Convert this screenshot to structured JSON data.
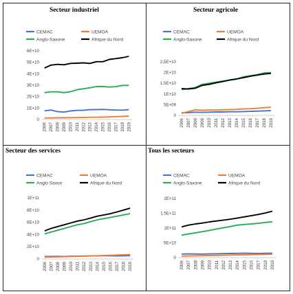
{
  "chart_data": [
    {
      "type": "line",
      "title": "Secteur industriel",
      "x": [
        "2006",
        "2007",
        "2008",
        "2009",
        "2010",
        "2011",
        "2012",
        "2013",
        "2014",
        "2015",
        "2016",
        "2017",
        "2018",
        "2019"
      ],
      "ylim": [
        0,
        60000000000
      ],
      "yticks": [
        "0",
        "1E+10",
        "2E+10",
        "3E+10",
        "4E+10",
        "5E+10",
        "6E+10"
      ],
      "ytick_values": [
        0,
        10000000000,
        20000000000,
        30000000000,
        40000000000,
        50000000000,
        60000000000
      ],
      "legend": "top",
      "grid": false,
      "series": [
        {
          "name": "CEMAC",
          "color": "#4472c4",
          "values": [
            7600000000,
            8300000000,
            6900000000,
            6500000000,
            7500000000,
            8000000000,
            8100000000,
            8600000000,
            8700000000,
            8800000000,
            8500000000,
            8300000000,
            8200000000,
            8600000000
          ]
        },
        {
          "name": "UEMOA",
          "color": "#ed7d31",
          "values": [
            1300000000,
            1400000000,
            1500000000,
            1500000000,
            1600000000,
            1700000000,
            1800000000,
            1900000000,
            2000000000,
            2100000000,
            2300000000,
            2500000000,
            2700000000,
            3000000000
          ]
        },
        {
          "name": "Anglo-Saxone",
          "color": "#22b14c",
          "values": [
            23500000000,
            24200000000,
            24200000000,
            23500000000,
            24300000000,
            26000000000,
            26900000000,
            27700000000,
            28800000000,
            28800000000,
            28400000000,
            28700000000,
            29800000000,
            29800000000
          ]
        },
        {
          "name": "Afrique du Nord",
          "color": "#000000",
          "values": [
            45000000000,
            47500000000,
            48200000000,
            47800000000,
            49000000000,
            49200000000,
            49500000000,
            49000000000,
            50500000000,
            50500000000,
            52500000000,
            53200000000,
            54000000000,
            55200000000
          ]
        }
      ]
    },
    {
      "type": "line",
      "title": "Secteur agricole",
      "x": [
        "2006",
        "2007",
        "2008",
        "2009",
        "2010",
        "2011",
        "2012",
        "2013",
        "2014",
        "2015",
        "2016",
        "2017",
        "2018",
        "2019"
      ],
      "ylim": [
        0,
        25000000000
      ],
      "yticks": [
        "0",
        "5E+09",
        "1E+10",
        "1,5E+10",
        "2E+10",
        "2,5E+10"
      ],
      "ytick_values": [
        0,
        5000000000,
        10000000000,
        15000000000,
        20000000000,
        25000000000
      ],
      "legend": "top",
      "grid": false,
      "series": [
        {
          "name": "CEMAC",
          "color": "#4472c4",
          "values": [
            1200000000,
            1300000000,
            1500000000,
            1400000000,
            1500000000,
            1600000000,
            1600000000,
            1700000000,
            1700000000,
            1800000000,
            1900000000,
            2000000000,
            2100000000,
            2200000000
          ]
        },
        {
          "name": "UEMOA",
          "color": "#ed7d31",
          "values": [
            1000000000,
            1800000000,
            2600000000,
            2400000000,
            2500000000,
            2500000000,
            2600000000,
            2700000000,
            2800000000,
            3000000000,
            3100000000,
            3300000000,
            3600000000,
            3800000000
          ]
        },
        {
          "name": "Anglo-Saxone",
          "color": "#22b14c",
          "values": [
            12000000000,
            12500000000,
            13000000000,
            14500000000,
            15000000000,
            15500000000,
            16000000000,
            16500000000,
            17000000000,
            18000000000,
            18500000000,
            19000000000,
            19800000000,
            20000000000
          ]
        },
        {
          "name": "Afrique du Nord",
          "color": "#000000",
          "values": [
            12500000000,
            12300000000,
            12700000000,
            14000000000,
            14500000000,
            15200000000,
            15800000000,
            16500000000,
            17000000000,
            17600000000,
            18300000000,
            18800000000,
            19300000000,
            19600000000
          ]
        }
      ]
    },
    {
      "type": "line",
      "title": "Secteur des services",
      "x": [
        "2006",
        "2007",
        "2008",
        "2009",
        "2010",
        "2011",
        "2012",
        "2013",
        "2014",
        "2015",
        "2016",
        "2017",
        "2018",
        "2019"
      ],
      "ylim": [
        0,
        100000000000
      ],
      "yticks": [
        "0",
        "2E+10",
        "4E+10",
        "6E+10",
        "8E+10",
        "1E+11"
      ],
      "ytick_values": [
        0,
        20000000000,
        40000000000,
        60000000000,
        80000000000,
        100000000000
      ],
      "legend": "top",
      "grid": false,
      "series": [
        {
          "name": "CEMAC",
          "color": "#4472c4",
          "values": [
            4000000000,
            4200000000,
            4300000000,
            4100000000,
            4400000000,
            4600000000,
            4800000000,
            5000000000,
            5200000000,
            5300000000,
            5200000000,
            5100000000,
            5200000000,
            5400000000
          ]
        },
        {
          "name": "UEMOA",
          "color": "#ed7d31",
          "values": [
            3000000000,
            3200000000,
            3500000000,
            3700000000,
            4000000000,
            4300000000,
            4600000000,
            5000000000,
            5300000000,
            5700000000,
            6000000000,
            6400000000,
            6800000000,
            7200000000
          ]
        },
        {
          "name": "Anglo Saxon",
          "color": "#22b14c",
          "values": [
            41000000000,
            44000000000,
            47000000000,
            50000000000,
            53000000000,
            56000000000,
            58000000000,
            61000000000,
            64000000000,
            66000000000,
            68000000000,
            70000000000,
            72000000000,
            74000000000
          ]
        },
        {
          "name": "Afrique du Nord",
          "color": "#000000",
          "values": [
            46000000000,
            50000000000,
            53000000000,
            56000000000,
            59000000000,
            62000000000,
            64000000000,
            67000000000,
            70000000000,
            72000000000,
            74000000000,
            77000000000,
            80000000000,
            83000000000
          ]
        }
      ]
    },
    {
      "type": "line",
      "title": "Tous les secteurs",
      "x": [
        "2006",
        "2007",
        "2008",
        "2009",
        "2010",
        "2011",
        "2012",
        "2013",
        "2014",
        "2015",
        "2016",
        "2017",
        "2018",
        "2019"
      ],
      "ylim": [
        0,
        200000000000
      ],
      "yticks": [
        "0",
        "5E+10",
        "1E+11",
        "1,5E+11",
        "2E+11"
      ],
      "ytick_values": [
        0,
        50000000000,
        100000000000,
        150000000000,
        200000000000
      ],
      "legend": "top",
      "grid": false,
      "series": [
        {
          "name": "CEMAC",
          "color": "#4472c4",
          "values": [
            12000000000,
            12500000000,
            12200000000,
            11800000000,
            12500000000,
            13000000000,
            13500000000,
            14000000000,
            14500000000,
            14800000000,
            14500000000,
            14300000000,
            14600000000,
            15000000000
          ]
        },
        {
          "name": "UEMOA",
          "color": "#ed7d31",
          "values": [
            5000000000,
            5500000000,
            6000000000,
            6500000000,
            7000000000,
            7500000000,
            8000000000,
            8500000000,
            9000000000,
            9500000000,
            10000000000,
            10500000000,
            11000000000,
            11500000000
          ]
        },
        {
          "name": "Anglo-Saxone",
          "color": "#22b14c",
          "values": [
            76000000000,
            80000000000,
            84000000000,
            88000000000,
            92000000000,
            97000000000,
            101000000000,
            105000000000,
            110000000000,
            112000000000,
            114000000000,
            116000000000,
            119000000000,
            121000000000
          ]
        },
        {
          "name": "Afrique du Nord",
          "color": "#000000",
          "values": [
            104000000000,
            110000000000,
            114000000000,
            117000000000,
            121000000000,
            124000000000,
            127000000000,
            130000000000,
            134000000000,
            138000000000,
            142000000000,
            146000000000,
            151000000000,
            157000000000
          ]
        }
      ]
    }
  ]
}
